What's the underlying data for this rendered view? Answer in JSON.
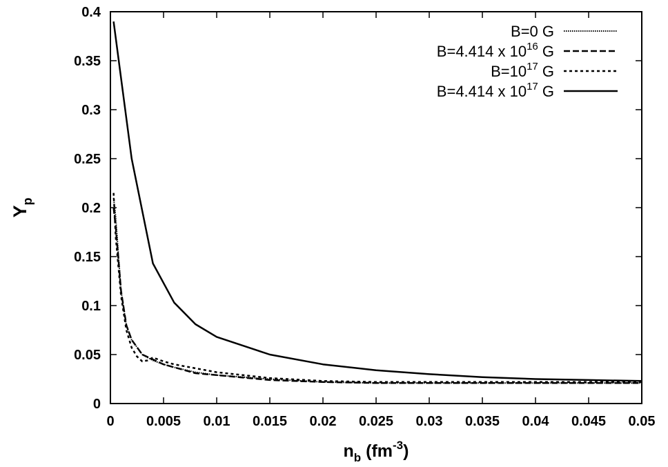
{
  "chart_data": {
    "type": "line",
    "xlabel": {
      "base": "n",
      "sub": "b",
      "unit_open": " (fm",
      "unit_sup": "-3",
      "unit_close": ")"
    },
    "ylabel": {
      "base": "Y",
      "sub": "p"
    },
    "xlim": [
      0,
      0.05
    ],
    "ylim": [
      0,
      0.4
    ],
    "x_ticks": [
      "0",
      "0.005",
      "0.01",
      "0.015",
      "0.02",
      "0.025",
      "0.03",
      "0.035",
      "0.04",
      "0.045",
      "0.05"
    ],
    "y_ticks": [
      "0",
      "0.05",
      "0.1",
      "0.15",
      "0.2",
      "0.25",
      "0.3",
      "0.35",
      "0.4"
    ],
    "grid": false,
    "legend_position": "top-right",
    "series": [
      {
        "name": "B=0 G",
        "legend": {
          "text": "B=0 G"
        },
        "style": "dotted-fine",
        "x": [
          0.0003,
          0.0005,
          0.001,
          0.0015,
          0.002,
          0.003,
          0.004,
          0.005,
          0.006,
          0.008,
          0.01,
          0.015,
          0.02,
          0.025,
          0.03,
          0.035,
          0.04,
          0.045,
          0.05
        ],
        "y": [
          0.21,
          0.19,
          0.115,
          0.08,
          0.065,
          0.05,
          0.044,
          0.04,
          0.037,
          0.032,
          0.029,
          0.025,
          0.022,
          0.021,
          0.021,
          0.021,
          0.021,
          0.021,
          0.021
        ]
      },
      {
        "name": "B=4.414 x 10^16 G",
        "legend": {
          "pre": "B=4.414 x 10",
          "sup": "16",
          "post": " G"
        },
        "style": "dashed",
        "x": [
          0.0003,
          0.0005,
          0.001,
          0.0015,
          0.002,
          0.003,
          0.004,
          0.005,
          0.006,
          0.008,
          0.01,
          0.015,
          0.02,
          0.025,
          0.03,
          0.035,
          0.04,
          0.045,
          0.05
        ],
        "y": [
          0.2,
          0.18,
          0.115,
          0.08,
          0.065,
          0.05,
          0.045,
          0.04,
          0.037,
          0.031,
          0.029,
          0.024,
          0.022,
          0.021,
          0.021,
          0.021,
          0.021,
          0.021,
          0.021
        ]
      },
      {
        "name": "B=10^17 G",
        "legend": {
          "pre": "B=10",
          "sup": "17",
          "post": " G"
        },
        "style": "dotted",
        "x": [
          0.0003,
          0.0005,
          0.001,
          0.0015,
          0.002,
          0.0025,
          0.003,
          0.0035,
          0.004,
          0.005,
          0.006,
          0.008,
          0.01,
          0.015,
          0.02,
          0.025,
          0.03,
          0.035,
          0.04,
          0.045,
          0.05
        ],
        "y": [
          0.215,
          0.17,
          0.11,
          0.075,
          0.057,
          0.048,
          0.043,
          0.044,
          0.047,
          0.043,
          0.04,
          0.036,
          0.032,
          0.026,
          0.023,
          0.022,
          0.022,
          0.022,
          0.022,
          0.022,
          0.022
        ]
      },
      {
        "name": "B=4.414 x 10^17 G",
        "legend": {
          "pre": "B=4.414 x 10",
          "sup": "17",
          "post": " G"
        },
        "style": "solid",
        "x": [
          0.0003,
          0.002,
          0.004,
          0.006,
          0.008,
          0.01,
          0.015,
          0.02,
          0.025,
          0.03,
          0.035,
          0.04,
          0.045,
          0.05
        ],
        "y": [
          0.39,
          0.25,
          0.143,
          0.103,
          0.081,
          0.068,
          0.05,
          0.04,
          0.034,
          0.03,
          0.027,
          0.025,
          0.024,
          0.023
        ]
      }
    ]
  }
}
